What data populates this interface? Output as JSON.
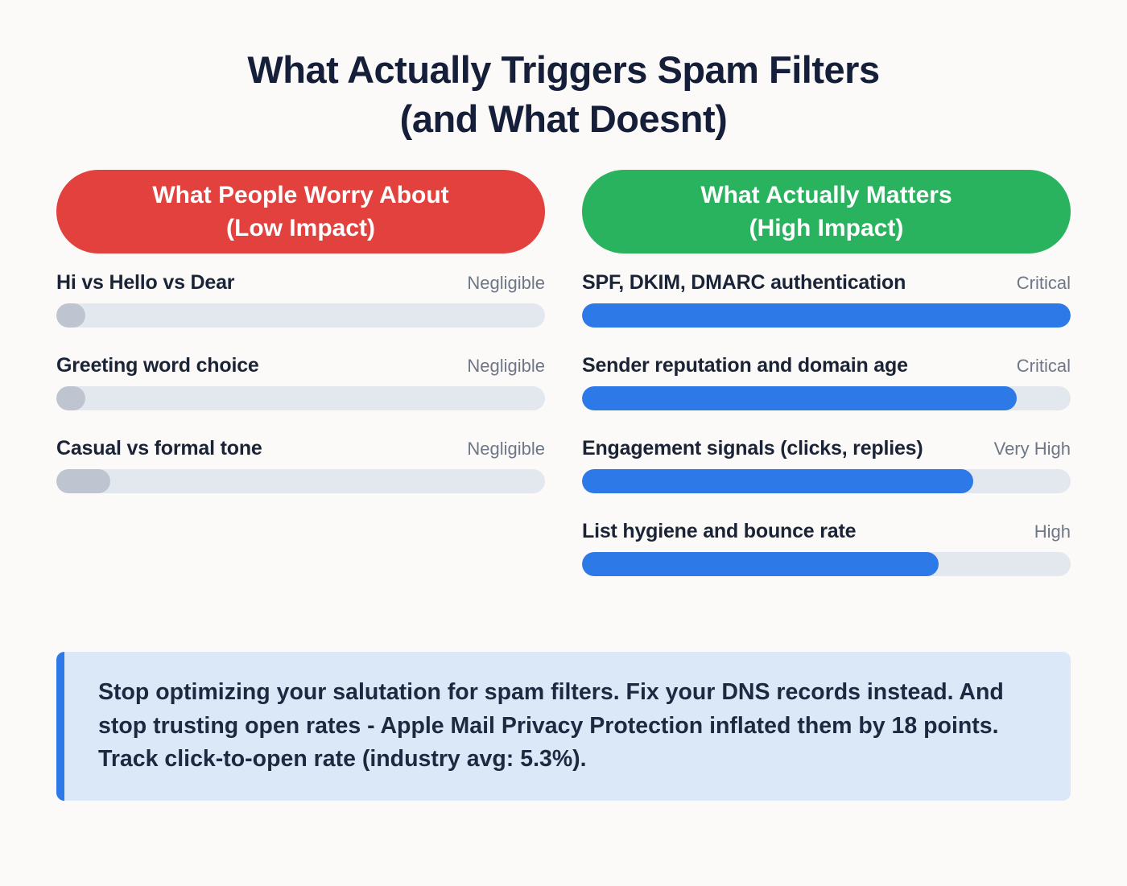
{
  "title": {
    "line1": "What Actually Triggers Spam Filters",
    "line2": "(and What Doesnt)"
  },
  "colors": {
    "background": "#fbfaf8",
    "title_text": "#161f3a",
    "low_impact_header": "#e2413d",
    "high_impact_header": "#2ab35f",
    "high_impact_bar": "#2e79e8",
    "low_impact_bar": "#bec5d1",
    "bar_track": "#e3e7ee",
    "impact_label_text": "#6e7787",
    "callout_background": "#dbe8f8",
    "callout_accent": "#2e79e8",
    "callout_text": "#1d2940"
  },
  "chart_data": {
    "type": "bar",
    "orientation": "horizontal",
    "value_unit": "relative impact, % of full bar (estimated from bar lengths)",
    "legend_position": "none",
    "grid": false,
    "groups": [
      {
        "header_line1": "What People Worry About",
        "header_line2": "(Low Impact)",
        "header_color": "#e2413d",
        "bar_color": "#bec5d1",
        "items": [
          {
            "label": "Hi vs Hello vs Dear",
            "impact": "Negligible",
            "value_pct": 6
          },
          {
            "label": "Greeting word choice",
            "impact": "Negligible",
            "value_pct": 6
          },
          {
            "label": "Casual vs formal tone",
            "impact": "Negligible",
            "value_pct": 11
          }
        ]
      },
      {
        "header_line1": "What Actually Matters",
        "header_line2": "(High Impact)",
        "header_color": "#2ab35f",
        "bar_color": "#2e79e8",
        "items": [
          {
            "label": "SPF, DKIM, DMARC authentication",
            "impact": "Critical",
            "value_pct": 100
          },
          {
            "label": "Sender reputation and domain age",
            "impact": "Critical",
            "value_pct": 89
          },
          {
            "label": "Engagement signals (clicks, replies)",
            "impact": "Very High",
            "value_pct": 80
          },
          {
            "label": "List hygiene and bounce rate",
            "impact": "High",
            "value_pct": 73
          }
        ]
      }
    ]
  },
  "callout": {
    "text": "Stop optimizing your salutation for spam filters. Fix your DNS records instead. And stop trusting open rates - Apple Mail Privacy Protection inflated them by 18 points. Track click-to-open rate (industry avg: 5.3%)."
  }
}
